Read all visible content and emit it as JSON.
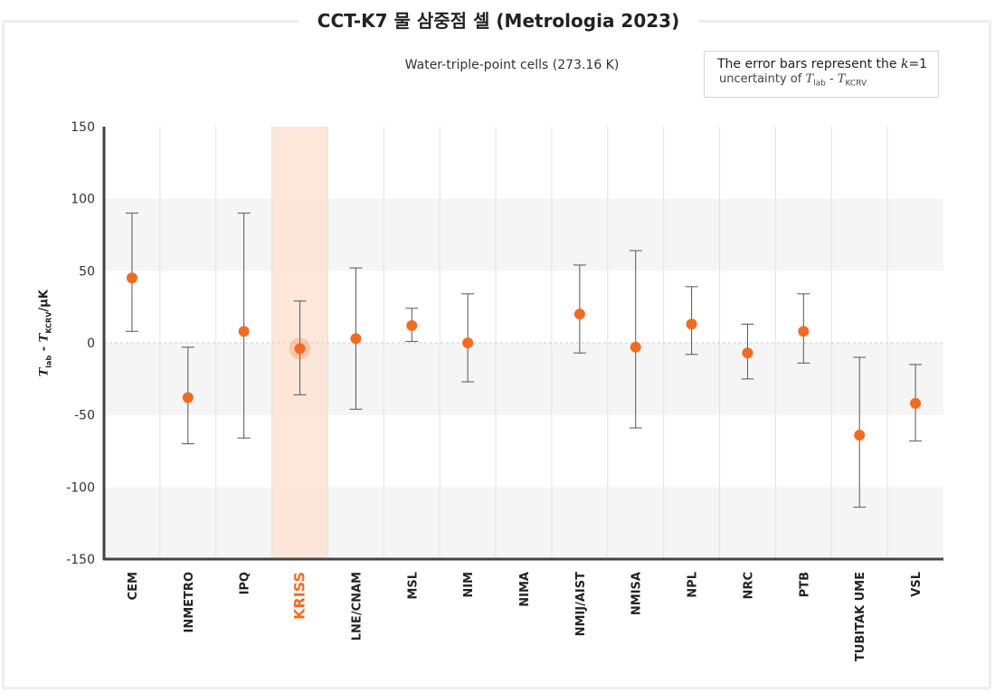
{
  "header": {
    "title": "CCT-K7 물 삼중점 셀 (Metrologia 2023)",
    "subtitle": "Water-triple-point cells (273.16 K)"
  },
  "note": {
    "line1_prefix": "The error bars represent the ",
    "line1_k": "k",
    "line1_suffix": "=1",
    "line2_prefix": "uncertainty of ",
    "t_lab": "T",
    "t_lab_sub": "lab",
    "dash": " - ",
    "t_kcrv": "T",
    "t_kcrv_sub": "KCRV"
  },
  "axis": {
    "ylabel_t1": "T",
    "ylabel_sub1": "lab",
    "ylabel_mid": " - ",
    "ylabel_t2": "T",
    "ylabel_sub2": "KCRV",
    "ylabel_unit": "/µK"
  },
  "colors": {
    "point": "#f26b21",
    "highlight_band": "#fbe3d3",
    "highlight_label": "#f26b21",
    "error_bar": "#555555",
    "band_shade": "#f5f5f5"
  },
  "chart_data": {
    "type": "scatter",
    "ylim": [
      -150,
      150
    ],
    "yticks": [
      150,
      100,
      50,
      0,
      -50,
      -100,
      -150
    ],
    "highlight": "KRISS",
    "categories": [
      "CEM",
      "INMETRO",
      "IPQ",
      "KRISS",
      "LNE/CNAM",
      "MSL",
      "NIM",
      "NIMA",
      "NMIJ/AIST",
      "NMISA",
      "NPL",
      "NRC",
      "PTB",
      "TUBITAK UME",
      "VSL"
    ],
    "values": [
      45,
      -38,
      8,
      -4,
      3,
      12,
      0,
      null,
      20,
      -3,
      13,
      -7,
      8,
      -64,
      -42
    ],
    "err_low": [
      8,
      -70,
      -66,
      -36,
      -46,
      1,
      -27,
      null,
      -7,
      -59,
      -8,
      -25,
      -14,
      -114,
      -68
    ],
    "err_high": [
      90,
      -3,
      90,
      29,
      52,
      24,
      34,
      null,
      54,
      64,
      39,
      13,
      34,
      -10,
      -15
    ]
  }
}
